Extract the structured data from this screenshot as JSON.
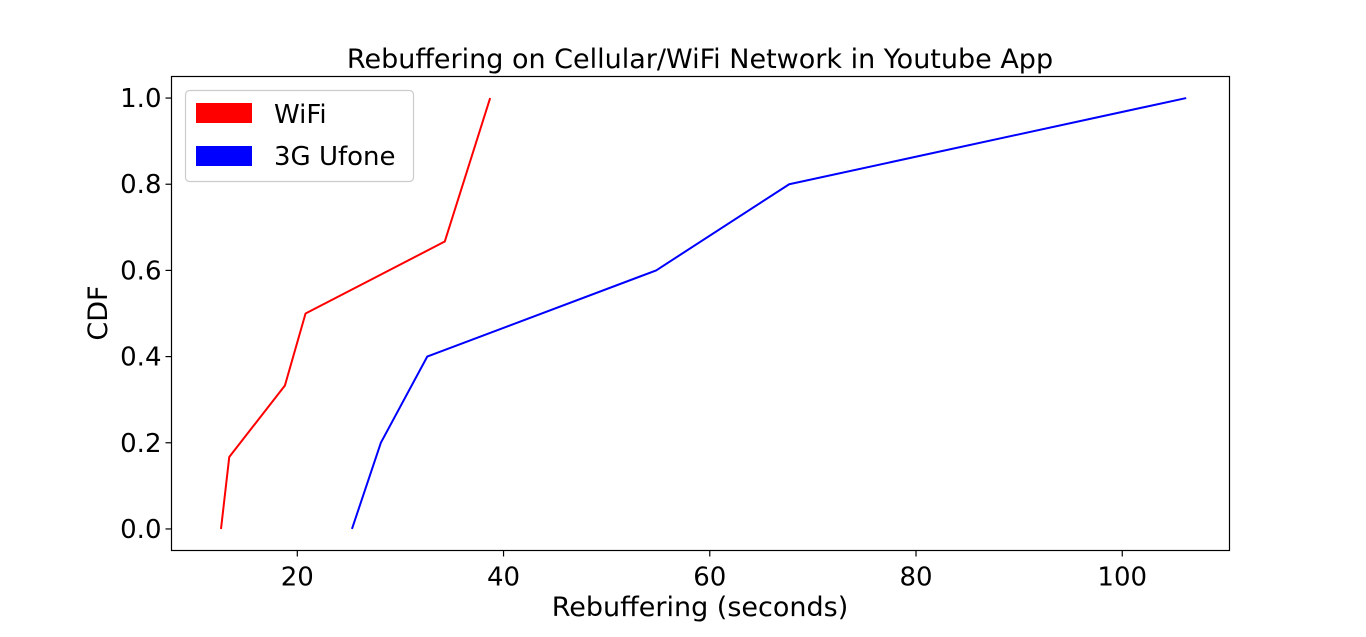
{
  "chart_data": {
    "type": "line",
    "title": "Rebuffering on Cellular/WiFi Network in Youtube App",
    "xlabel": "Rebuffering (seconds)",
    "ylabel": "CDF",
    "xlim": [
      7.8,
      110.4
    ],
    "ylim": [
      -0.05,
      1.05
    ],
    "xticks": [
      20,
      40,
      60,
      80,
      100
    ],
    "yticks": [
      0.0,
      0.2,
      0.4,
      0.6,
      0.8,
      1.0
    ],
    "xtick_labels": [
      "20",
      "40",
      "60",
      "80",
      "100"
    ],
    "ytick_labels": [
      "0.0",
      "0.2",
      "0.4",
      "0.6",
      "0.8",
      "1.0"
    ],
    "grid": false,
    "legend_position": "top-left",
    "series": [
      {
        "name": "WiFi",
        "color": "#ff0000",
        "x": [
          12.6,
          13.4,
          18.8,
          20.8,
          34.3,
          38.7
        ],
        "y": [
          0.0,
          0.167,
          0.333,
          0.5,
          0.667,
          1.0
        ]
      },
      {
        "name": "3G Ufone",
        "color": "#0000ff",
        "x": [
          25.3,
          28.1,
          32.6,
          54.8,
          67.7,
          106.2
        ],
        "y": [
          0.0,
          0.2,
          0.4,
          0.6,
          0.8,
          1.0
        ]
      }
    ]
  }
}
